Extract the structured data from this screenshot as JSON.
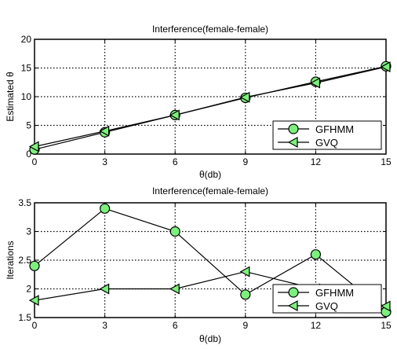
{
  "chart_data": [
    {
      "type": "line",
      "title": "Interference(female-female)",
      "xlabel": "θ(db)",
      "ylabel": "Estimated θ",
      "xlim": [
        0,
        15
      ],
      "ylim": [
        0,
        20
      ],
      "xticks": [
        "0",
        "3",
        "6",
        "9",
        "12",
        "15"
      ],
      "yticks": [
        "0",
        "5",
        "10",
        "15",
        "20"
      ],
      "grid": true,
      "legend": "bottom-right",
      "x": [
        0,
        3,
        6,
        9,
        12,
        15
      ],
      "series": [
        {
          "name": "GFHMM",
          "marker": "circle",
          "values": [
            0.8,
            3.8,
            6.8,
            9.8,
            12.6,
            15.3
          ]
        },
        {
          "name": "GVQ",
          "marker": "triangle-left",
          "values": [
            1.3,
            4.0,
            6.8,
            9.9,
            12.4,
            15.2
          ]
        }
      ]
    },
    {
      "type": "line",
      "title": "Interference(female-female)",
      "xlabel": "θ(db)",
      "ylabel": "Iterations",
      "xlim": [
        0,
        15
      ],
      "ylim": [
        1.5,
        3.5
      ],
      "xticks": [
        "0",
        "3",
        "6",
        "9",
        "12",
        "15"
      ],
      "yticks": [
        "1.5",
        "2",
        "2.5",
        "3",
        "3.5"
      ],
      "grid": true,
      "legend": "bottom-right",
      "x": [
        0,
        3,
        6,
        9,
        12,
        15
      ],
      "series": [
        {
          "name": "GFHMM",
          "marker": "circle",
          "values": [
            2.4,
            3.4,
            3.0,
            1.9,
            2.6,
            1.6
          ]
        },
        {
          "name": "GVQ",
          "marker": "triangle-left",
          "values": [
            1.8,
            2.0,
            2.0,
            2.3,
            2.0,
            1.7
          ]
        }
      ]
    }
  ],
  "style": {
    "marker_fill": "#7cf07c",
    "line_color": "#000000",
    "grid_color": "#000000"
  }
}
